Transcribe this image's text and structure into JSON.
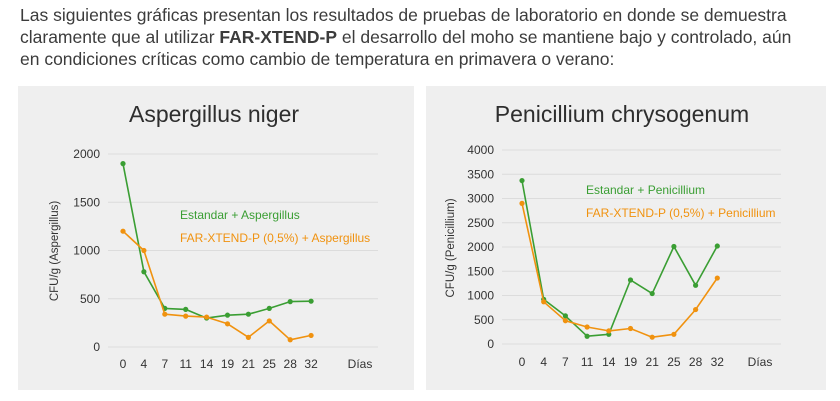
{
  "intro": {
    "line1": "Las siguientes gráficas presentan los resultados de pruebas de laboratorio en donde se demuestra",
    "line2_pre": "claramente que al utilizar ",
    "line2_bold": "FAR-XTEND-P",
    "line2_post": " el desarrollo del moho se mantiene bajo y controlado, aún",
    "line3": "en condiciones críticas como cambio de temperatura en primavera o verano:"
  },
  "colors": {
    "green": "#3a9e33",
    "orange": "#f0920f"
  },
  "chart_data": [
    {
      "type": "line",
      "title": "Aspergillus niger",
      "ylabel": "CFU/g (Aspergillus)",
      "xlabel": "Días",
      "categories": [
        "0",
        "4",
        "7",
        "11",
        "14",
        "19",
        "21",
        "25",
        "28",
        "32"
      ],
      "ylim": [
        0,
        2000
      ],
      "yticks": [
        0,
        500,
        1000,
        1500,
        2000
      ],
      "series": [
        {
          "name": "Estandar + Aspergillus",
          "color": "#3a9e33",
          "values": [
            1900,
            780,
            400,
            390,
            300,
            330,
            340,
            400,
            470,
            475
          ]
        },
        {
          "name": "FAR-XTEND-P (0,5%) + Aspergillus",
          "color": "#f0920f",
          "values": [
            1200,
            1000,
            340,
            320,
            310,
            240,
            100,
            270,
            75,
            120
          ]
        }
      ]
    },
    {
      "type": "line",
      "title": "Penicillium chrysogenum",
      "ylabel": "CFU/g (Penicillium)",
      "xlabel": "Días",
      "categories": [
        "0",
        "4",
        "7",
        "11",
        "14",
        "19",
        "21",
        "25",
        "28",
        "32"
      ],
      "ylim": [
        0,
        4000
      ],
      "yticks": [
        0,
        500,
        1000,
        1500,
        2000,
        2500,
        3000,
        3500,
        4000
      ],
      "series": [
        {
          "name": "Estandar + Penicillium",
          "color": "#3a9e33",
          "values": [
            3370,
            920,
            580,
            160,
            200,
            1320,
            1040,
            2010,
            1210,
            2020
          ]
        },
        {
          "name": "FAR-XTEND-P (0,5%) + Penicillium",
          "color": "#f0920f",
          "values": [
            2900,
            870,
            480,
            350,
            270,
            320,
            140,
            200,
            710,
            1360
          ]
        }
      ]
    }
  ]
}
